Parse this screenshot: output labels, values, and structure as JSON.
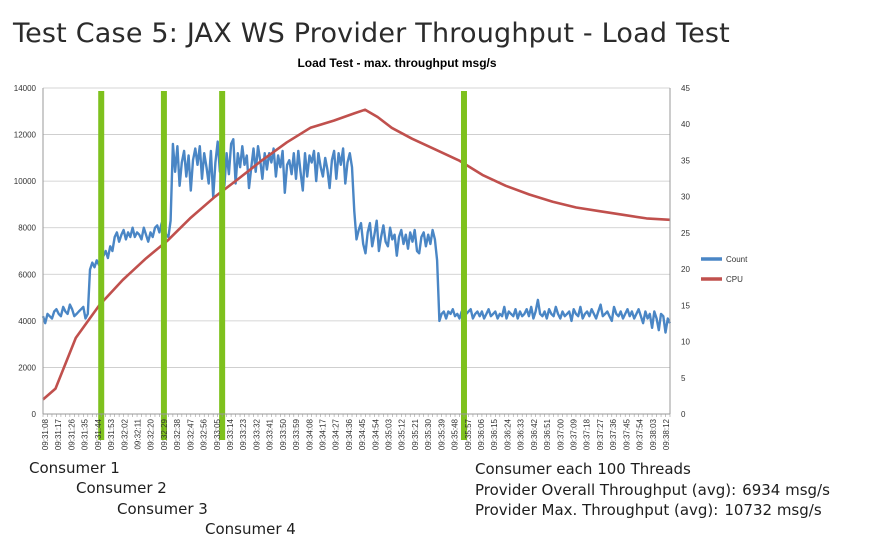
{
  "slide_title": "Test Case 5: JAX WS Provider Throughput - Load Test",
  "captions": {
    "consumer1": "Consumer 1",
    "consumer2": "Consumer 2",
    "consumer3": "Consumer 3",
    "consumer4": "Consumer 4"
  },
  "notes": {
    "line1": "Consumer each 100 Threads",
    "line2_label": "Provider Overall Throughput (avg):",
    "line2_value": "6934 msg/s",
    "line3_label": "Provider Max. Throughput (avg):",
    "line3_value": "10732 msg/s"
  },
  "chart_data": {
    "type": "line",
    "title": "Load Test - max. throughput msg/s",
    "xlabel": "",
    "ylabel": "",
    "y_left": {
      "min": 0,
      "max": 14000,
      "ticks": [
        0,
        2000,
        4000,
        6000,
        8000,
        10000,
        12000,
        14000
      ]
    },
    "y_right": {
      "min": 0,
      "max": 45,
      "ticks": [
        0,
        5,
        10,
        15,
        20,
        25,
        30,
        35,
        40,
        45
      ]
    },
    "x_ticks": [
      "09:31:08",
      "09:31:17",
      "09:31:26",
      "09:31:35",
      "09:31:44",
      "09:31:53",
      "09:32:02",
      "09:32:11",
      "09:32:20",
      "09:32:29",
      "09:32:38",
      "09:32:47",
      "09:32:56",
      "09:33:05",
      "09:33:14",
      "09:33:23",
      "09:33:32",
      "09:33:41",
      "09:33:50",
      "09:33:59",
      "09:34:08",
      "09:34:17",
      "09:34:27",
      "09:34:36",
      "09:34:45",
      "09:34:54",
      "09:35:03",
      "09:35:12",
      "09:35:21",
      "09:35:30",
      "09:35:39",
      "09:35:48",
      "09:35:57",
      "09:36:06",
      "09:36:15",
      "09:36:24",
      "09:36:33",
      "09:36:42",
      "09:36:51",
      "09:37:00",
      "09:37:09",
      "09:37:18",
      "09:37:27",
      "09:37:36",
      "09:37:45",
      "09:37:54",
      "09:38:03",
      "09:38:12"
    ],
    "grid": true,
    "legend_position": "right",
    "series": [
      {
        "name": "Count",
        "axis": "left",
        "color": "#4a86c5",
        "values": [
          4200,
          3900,
          4300,
          4200,
          4100,
          4400,
          4500,
          4300,
          4200,
          4600,
          4400,
          4300,
          4700,
          4500,
          4200,
          4300,
          4400,
          4500,
          4600,
          4100,
          4300,
          6200,
          6500,
          6300,
          6600,
          6400,
          6900,
          6800,
          7000,
          6700,
          7200,
          7000,
          7600,
          7800,
          7400,
          7700,
          7900,
          7500,
          7800,
          7600,
          8000,
          7600,
          7800,
          7700,
          7500,
          8000,
          7700,
          7400,
          7800,
          7600,
          8000,
          8100,
          7800,
          8200,
          7900,
          7700,
          7600,
          8300,
          11600,
          10400,
          11500,
          9800,
          10800,
          11300,
          10200,
          11100,
          9600,
          10900,
          11400,
          10700,
          11500,
          10100,
          11200,
          10600,
          9900,
          11300,
          9300,
          10800,
          11700,
          10400,
          11100,
          9800,
          11200,
          10300,
          11600,
          11800,
          9900,
          11200,
          10600,
          11500,
          10700,
          11100,
          9700,
          10600,
          11400,
          10400,
          11500,
          10900,
          10100,
          11200,
          10500,
          11200,
          10800,
          11400,
          10200,
          11100,
          10600,
          11300,
          9500,
          10700,
          10900,
          10300,
          11200,
          10100,
          11300,
          10400,
          9600,
          11200,
          10200,
          11100,
          10800,
          11300,
          10000,
          11200,
          10600,
          10200,
          11000,
          10500,
          9700,
          10900,
          11300,
          10100,
          11200,
          10700,
          11400,
          9900,
          10800,
          11200,
          10600,
          8700,
          7500,
          7900,
          8200,
          7300,
          6900,
          7800,
          8200,
          7200,
          7700,
          8300,
          7000,
          7600,
          8100,
          7400,
          7200,
          8000,
          7500,
          7700,
          6800,
          7600,
          7900,
          7300,
          7700,
          7100,
          7800,
          7400,
          7900,
          7000,
          6900,
          7600,
          7800,
          7200,
          7700,
          7300,
          7900,
          7500,
          6600,
          4000,
          4300,
          4400,
          4100,
          4400,
          4300,
          4500,
          4200,
          4300,
          4100,
          4400,
          4200,
          4300,
          4400,
          4500,
          4100,
          4300,
          4400,
          4200,
          4400,
          4100,
          4300,
          4500,
          4200,
          4300,
          4400,
          4100,
          4300,
          4200,
          4600,
          4100,
          4400,
          4300,
          4200,
          4500,
          4100,
          4400,
          4200,
          4300,
          4500,
          4200,
          4600,
          4100,
          4400,
          4900,
          4300,
          4200,
          4400,
          4100,
          4500,
          4300,
          4200,
          4600,
          4300,
          4100,
          4400,
          4200,
          4300,
          4400,
          4000,
          4500,
          4300,
          4200,
          4600,
          4100,
          4300,
          4400,
          4200,
          4500,
          4300,
          4100,
          4400,
          4700,
          4200,
          4300,
          4400,
          4200,
          4000,
          4600,
          4300,
          4200,
          4400,
          4100,
          4300,
          4500,
          4200,
          4400,
          4100,
          4300,
          4500,
          4200,
          3900,
          4400,
          4100,
          4300,
          3700,
          4400,
          4100,
          3600,
          4300,
          4200,
          3500,
          4100,
          3900
        ]
      },
      {
        "name": "CPU",
        "axis": "right",
        "color": "#c0504d",
        "points": [
          [
            0,
            2
          ],
          [
            8,
            3.5
          ],
          [
            21,
            10.5
          ],
          [
            36,
            15
          ],
          [
            51,
            18.5
          ],
          [
            66,
            21.5
          ],
          [
            80,
            24
          ],
          [
            94,
            27
          ],
          [
            110,
            30
          ],
          [
            124,
            32.3
          ],
          [
            140,
            35
          ],
          [
            156,
            37.5
          ],
          [
            171,
            39.5
          ],
          [
            186,
            40.5
          ],
          [
            199,
            41.5
          ],
          [
            206,
            42
          ],
          [
            214,
            41
          ],
          [
            223,
            39.5
          ],
          [
            236,
            38
          ],
          [
            251,
            36.5
          ],
          [
            266,
            35
          ],
          [
            281,
            33
          ],
          [
            296,
            31.5
          ],
          [
            311,
            30.3
          ],
          [
            326,
            29.3
          ],
          [
            341,
            28.5
          ],
          [
            356,
            28
          ],
          [
            371,
            27.5
          ],
          [
            386,
            27
          ],
          [
            401,
            26.8
          ]
        ]
      }
    ],
    "markers": [
      {
        "label": "Consumer 1",
        "x": 26
      },
      {
        "label": "Consumer 2",
        "x": 54
      },
      {
        "label": "Consumer 3",
        "x": 80
      },
      {
        "label": "Consumer 4",
        "x": 188
      }
    ]
  }
}
